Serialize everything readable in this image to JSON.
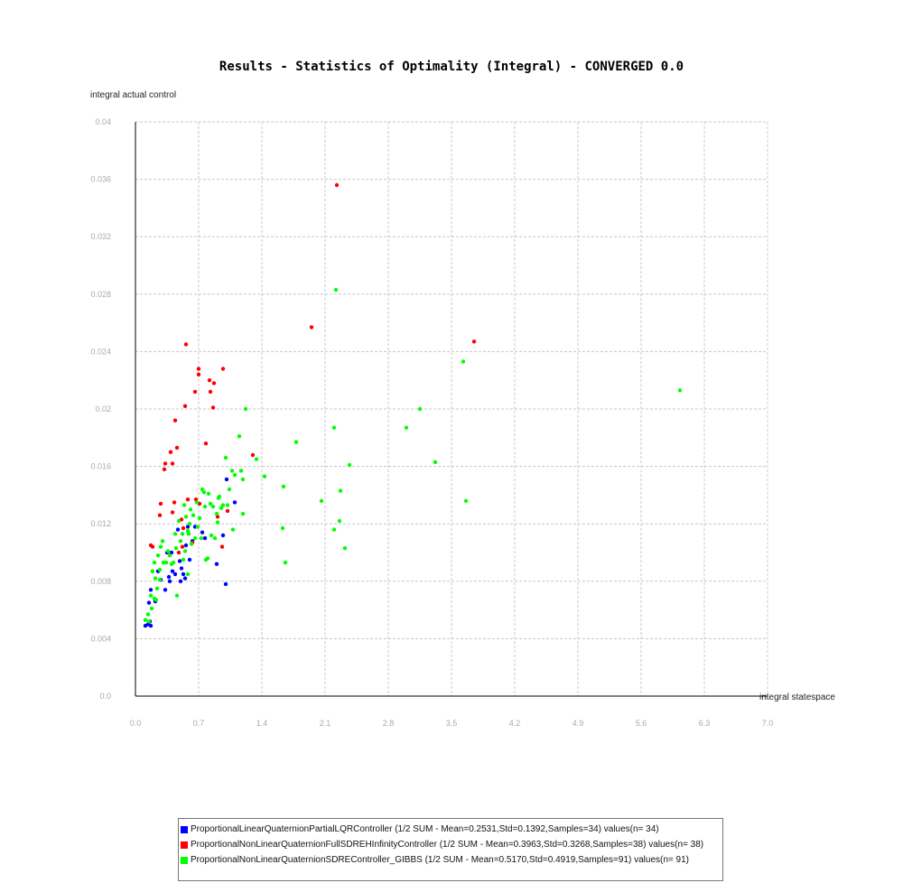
{
  "chart_data": {
    "type": "scatter",
    "title": "Results - Statistics of Optimality (Integral) - CONVERGED 0.0",
    "xlabel": "integral statespace",
    "ylabel": "integral actual control",
    "xlim": [
      0.0,
      7.0
    ],
    "ylim": [
      0.0,
      0.04
    ],
    "x_ticks": [
      "0.0",
      "0.7",
      "1.4",
      "2.1",
      "2.8",
      "3.5",
      "4.2",
      "4.9",
      "5.6",
      "6.3",
      "7.0"
    ],
    "y_ticks": [
      "0.0",
      "0.004",
      "0.008",
      "0.012",
      "0.016",
      "0.02",
      "0.024",
      "0.028",
      "0.032",
      "0.036",
      "0.04"
    ],
    "grid": true,
    "legend_position": "bottom-center",
    "series": [
      {
        "name": "ProportionalLinearQuaternionPartialLQRController (1/2 SUM - Mean=0.2531,Std=0.1392,Samples=34) values(n= 34)",
        "color": "#0000ff",
        "points": [
          [
            0.11,
            0.0049
          ],
          [
            0.14,
            0.005
          ],
          [
            0.16,
            0.0052
          ],
          [
            0.17,
            0.0049
          ],
          [
            0.15,
            0.0065
          ],
          [
            0.17,
            0.0074
          ],
          [
            0.22,
            0.0066
          ],
          [
            0.25,
            0.0087
          ],
          [
            0.28,
            0.0081
          ],
          [
            0.33,
            0.0074
          ],
          [
            0.35,
            0.01
          ],
          [
            0.37,
            0.0083
          ],
          [
            0.38,
            0.008
          ],
          [
            0.4,
            0.01
          ],
          [
            0.41,
            0.0087
          ],
          [
            0.44,
            0.0085
          ],
          [
            0.47,
            0.0116
          ],
          [
            0.49,
            0.0094
          ],
          [
            0.5,
            0.008
          ],
          [
            0.51,
            0.0089
          ],
          [
            0.53,
            0.0085
          ],
          [
            0.55,
            0.0082
          ],
          [
            0.56,
            0.0105
          ],
          [
            0.58,
            0.0118
          ],
          [
            0.6,
            0.0095
          ],
          [
            0.63,
            0.0108
          ],
          [
            0.66,
            0.0118
          ],
          [
            0.74,
            0.0114
          ],
          [
            0.77,
            0.011
          ],
          [
            0.9,
            0.0092
          ],
          [
            0.97,
            0.0112
          ],
          [
            1.0,
            0.0078
          ],
          [
            1.01,
            0.0151
          ],
          [
            1.1,
            0.0135
          ]
        ]
      },
      {
        "name": "ProportionalNonLinearQuaternionFullSDREHInfinityController (1/2 SUM - Mean=0.3963,Std=0.3268,Samples=38) values(n= 38)",
        "color": "#ff0000",
        "points": [
          [
            0.17,
            0.0105
          ],
          [
            0.19,
            0.0104
          ],
          [
            0.27,
            0.0126
          ],
          [
            0.28,
            0.0134
          ],
          [
            0.32,
            0.0158
          ],
          [
            0.33,
            0.0162
          ],
          [
            0.39,
            0.017
          ],
          [
            0.41,
            0.0128
          ],
          [
            0.41,
            0.0162
          ],
          [
            0.43,
            0.0135
          ],
          [
            0.44,
            0.0192
          ],
          [
            0.46,
            0.0173
          ],
          [
            0.48,
            0.01
          ],
          [
            0.51,
            0.0123
          ],
          [
            0.52,
            0.0104
          ],
          [
            0.55,
            0.0202
          ],
          [
            0.56,
            0.0245
          ],
          [
            0.58,
            0.0137
          ],
          [
            0.63,
            0.0107
          ],
          [
            0.66,
            0.0212
          ],
          [
            0.67,
            0.0137
          ],
          [
            0.7,
            0.0224
          ],
          [
            0.7,
            0.0228
          ],
          [
            0.71,
            0.0134
          ],
          [
            0.78,
            0.0176
          ],
          [
            0.82,
            0.022
          ],
          [
            0.83,
            0.0212
          ],
          [
            0.86,
            0.0201
          ],
          [
            0.87,
            0.0218
          ],
          [
            0.91,
            0.0125
          ],
          [
            0.96,
            0.0104
          ],
          [
            0.97,
            0.0228
          ],
          [
            1.02,
            0.0129
          ],
          [
            1.3,
            0.0168
          ],
          [
            1.95,
            0.0257
          ],
          [
            2.23,
            0.0356
          ],
          [
            3.75,
            0.0247
          ],
          [
            0.53,
            0.0117
          ]
        ]
      },
      {
        "name": "ProportionalNonLinearQuaternionSDREController_GIBBS (1/2 SUM - Mean=0.5170,Std=0.4919,Samples=91) values(n= 91)",
        "color": "#00ff00",
        "points": [
          [
            0.11,
            0.0053
          ],
          [
            0.14,
            0.0057
          ],
          [
            0.15,
            0.0052
          ],
          [
            0.17,
            0.007
          ],
          [
            0.18,
            0.0061
          ],
          [
            0.19,
            0.0087
          ],
          [
            0.21,
            0.0068
          ],
          [
            0.21,
            0.0093
          ],
          [
            0.22,
            0.0082
          ],
          [
            0.23,
            0.0067
          ],
          [
            0.24,
            0.0075
          ],
          [
            0.25,
            0.0098
          ],
          [
            0.27,
            0.0088
          ],
          [
            0.27,
            0.0081
          ],
          [
            0.28,
            0.0104
          ],
          [
            0.3,
            0.0108
          ],
          [
            0.31,
            0.0093
          ],
          [
            0.34,
            0.0093
          ],
          [
            0.36,
            0.0101
          ],
          [
            0.38,
            0.0098
          ],
          [
            0.4,
            0.0092
          ],
          [
            0.42,
            0.0093
          ],
          [
            0.44,
            0.0113
          ],
          [
            0.45,
            0.0103
          ],
          [
            0.46,
            0.007
          ],
          [
            0.48,
            0.0122
          ],
          [
            0.5,
            0.0108
          ],
          [
            0.52,
            0.0113
          ],
          [
            0.53,
            0.0095
          ],
          [
            0.54,
            0.0133
          ],
          [
            0.55,
            0.0101
          ],
          [
            0.56,
            0.0125
          ],
          [
            0.58,
            0.0085
          ],
          [
            0.59,
            0.0113
          ],
          [
            0.6,
            0.012
          ],
          [
            0.61,
            0.013
          ],
          [
            0.62,
            0.0106
          ],
          [
            0.64,
            0.0126
          ],
          [
            0.66,
            0.011
          ],
          [
            0.68,
            0.0135
          ],
          [
            0.69,
            0.0118
          ],
          [
            0.71,
            0.0124
          ],
          [
            0.73,
            0.011
          ],
          [
            0.74,
            0.0144
          ],
          [
            0.76,
            0.0142
          ],
          [
            0.77,
            0.0132
          ],
          [
            0.78,
            0.0095
          ],
          [
            0.8,
            0.0096
          ],
          [
            0.81,
            0.0141
          ],
          [
            0.83,
            0.0134
          ],
          [
            0.84,
            0.0112
          ],
          [
            0.86,
            0.0132
          ],
          [
            0.88,
            0.011
          ],
          [
            0.9,
            0.0127
          ],
          [
            0.91,
            0.0121
          ],
          [
            0.92,
            0.0138
          ],
          [
            0.93,
            0.0139
          ],
          [
            0.95,
            0.0131
          ],
          [
            0.97,
            0.0133
          ],
          [
            1.0,
            0.0166
          ],
          [
            1.02,
            0.0133
          ],
          [
            1.04,
            0.0144
          ],
          [
            1.07,
            0.0157
          ],
          [
            1.08,
            0.0116
          ],
          [
            1.1,
            0.0154
          ],
          [
            1.15,
            0.0181
          ],
          [
            1.17,
            0.0157
          ],
          [
            1.19,
            0.0151
          ],
          [
            1.19,
            0.0127
          ],
          [
            1.22,
            0.02
          ],
          [
            1.34,
            0.0165
          ],
          [
            1.43,
            0.0153
          ],
          [
            1.63,
            0.0117
          ],
          [
            1.64,
            0.0146
          ],
          [
            1.66,
            0.0093
          ],
          [
            1.78,
            0.0177
          ],
          [
            2.06,
            0.0136
          ],
          [
            2.2,
            0.0116
          ],
          [
            2.2,
            0.0187
          ],
          [
            2.22,
            0.0283
          ],
          [
            2.26,
            0.0122
          ],
          [
            2.27,
            0.0143
          ],
          [
            2.32,
            0.0103
          ],
          [
            2.37,
            0.0161
          ],
          [
            3.0,
            0.0187
          ],
          [
            3.15,
            0.02
          ],
          [
            3.32,
            0.0163
          ],
          [
            3.63,
            0.0233
          ],
          [
            3.66,
            0.0136
          ],
          [
            6.03,
            0.0213
          ],
          [
            0.58,
            0.0115
          ]
        ]
      }
    ]
  }
}
